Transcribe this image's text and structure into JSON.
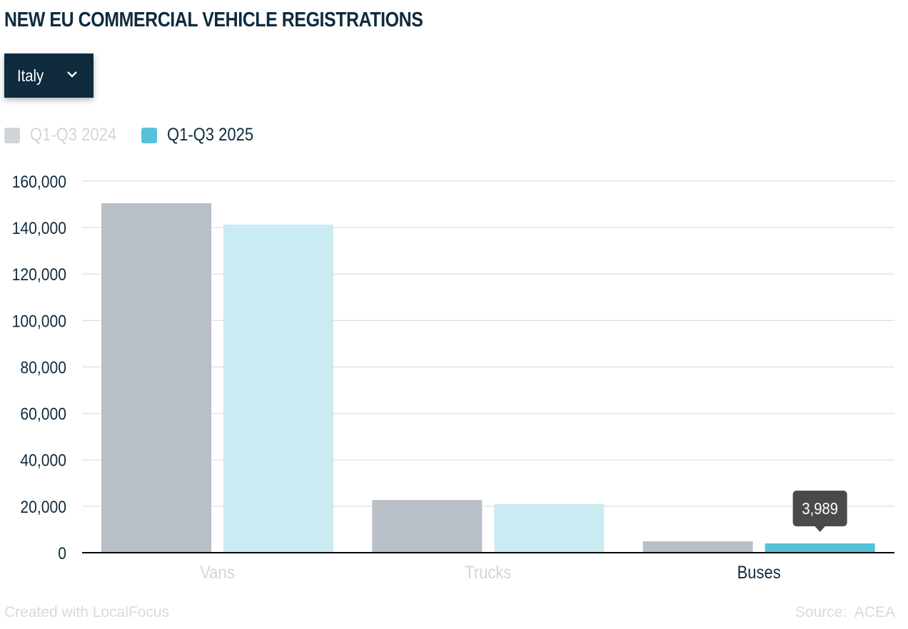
{
  "title": "NEW EU COMMERCIAL VEHICLE REGISTRATIONS",
  "dropdown": {
    "selected": "Italy",
    "icon": "chevron-down-icon"
  },
  "colors": {
    "series_2024": "#b8bfc6",
    "series_2025_light": "#cbebf2",
    "series_2025_active": "#56c2d8",
    "legend_2024": "#d1d5d9",
    "text": "#0f2b3d",
    "tooltip": "#4a4a4a"
  },
  "chart_data": {
    "type": "bar",
    "title": "NEW EU COMMERCIAL VEHICLE REGISTRATIONS",
    "categories": [
      "Vans",
      "Trucks",
      "Buses"
    ],
    "series": [
      {
        "name": "Q1-Q3 2024",
        "values": [
          150500,
          22700,
          4900
        ]
      },
      {
        "name": "Q1-Q3 2025",
        "values": [
          141300,
          20900,
          3989
        ]
      }
    ],
    "ylim": [
      0,
      160000
    ],
    "yticks": [
      0,
      20000,
      40000,
      60000,
      80000,
      100000,
      120000,
      140000,
      160000
    ],
    "ytick_labels": [
      "0",
      "20,000",
      "40,000",
      "60,000",
      "80,000",
      "100,000",
      "120,000",
      "140,000",
      "160,000"
    ],
    "grid": true,
    "legend": "top-left",
    "highlighted_category": "Buses",
    "tooltip": {
      "category": "Buses",
      "series": "Q1-Q3 2025",
      "label": "3,989"
    }
  },
  "footer": {
    "credit": "Created with LocalFocus",
    "source": "Source:  ACEA"
  }
}
